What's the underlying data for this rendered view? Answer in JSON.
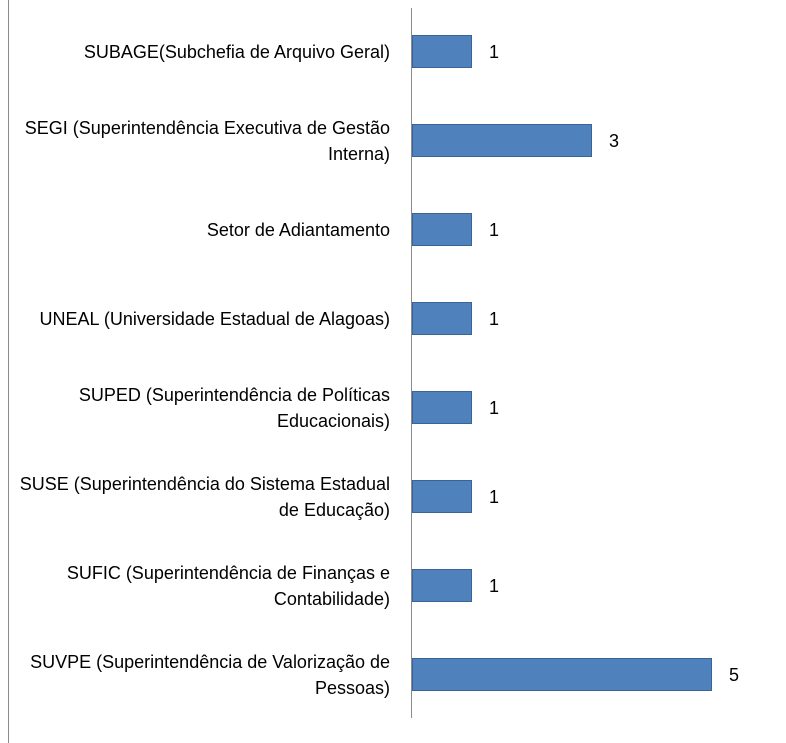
{
  "chart_data": {
    "type": "bar",
    "orientation": "horizontal",
    "categories": [
      "SUBAGE(Subchefia de Arquivo Geral)",
      "SEGI (Superintendência Executiva de Gestão Interna)",
      "Setor de Adiantamento",
      "UNEAL (Universidade Estadual de Alagoas)",
      "SUPED (Superintendência de Políticas Educacionais)",
      "SUSE (Superintendência do Sistema Estadual de Educação)",
      "SUFIC (Superintendência de Finanças e Contabilidade)",
      "SUVPE (Superintendência de Valorização de Pessoas)"
    ],
    "values": [
      1,
      3,
      1,
      1,
      1,
      1,
      1,
      5
    ],
    "color": "#4f81bd"
  }
}
